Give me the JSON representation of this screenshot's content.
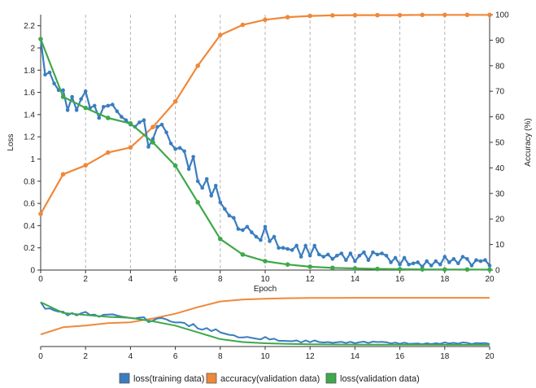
{
  "chart_data": {
    "type": "line",
    "xlabel": "Epoch",
    "ylabel": "Loss",
    "y2label": "Accuracy (%)",
    "xlim": [
      0,
      20
    ],
    "ylim": [
      0,
      2.3
    ],
    "y2lim": [
      0,
      100
    ],
    "x_ticks": [
      0,
      2,
      4,
      6,
      8,
      10,
      12,
      14,
      16,
      18,
      20
    ],
    "x_tick_labels": [
      "0",
      "2",
      "4",
      "6",
      "8",
      "10",
      "12",
      "14",
      "16",
      "18",
      "20"
    ],
    "y_ticks": [
      0,
      0.2,
      0.4,
      0.6,
      0.8,
      1,
      1.2,
      1.4,
      1.6,
      1.8,
      2,
      2.2
    ],
    "y_tick_labels": [
      "0",
      "0.2",
      "0.4",
      "0.6",
      "0.8",
      "1",
      "1.2",
      "1.4",
      "1.6",
      "1.8",
      "2",
      "2.2"
    ],
    "y2_ticks": [
      0,
      10,
      20,
      30,
      40,
      50,
      60,
      70,
      80,
      90,
      100
    ],
    "y2_tick_labels": [
      "0",
      "10",
      "20",
      "30",
      "40",
      "50",
      "60",
      "70",
      "80",
      "90",
      "100"
    ],
    "grid": "vertical dashed at even epochs",
    "legend_position": "bottom",
    "colors": {
      "loss_training": "#3a7dbf",
      "accuracy_validation": "#f0883a",
      "loss_validation": "#3ea84a"
    },
    "series": [
      {
        "name": "loss(training data)",
        "axis": "left",
        "x": [
          0,
          0.2,
          0.4,
          0.6,
          0.8,
          1.0,
          1.2,
          1.4,
          1.6,
          1.8,
          2.0,
          2.2,
          2.4,
          2.6,
          2.8,
          3.0,
          3.2,
          3.4,
          3.6,
          3.8,
          4.0,
          4.2,
          4.4,
          4.6,
          4.8,
          5.0,
          5.2,
          5.4,
          5.6,
          5.8,
          6.0,
          6.2,
          6.4,
          6.6,
          6.8,
          7.0,
          7.2,
          7.4,
          7.6,
          7.8,
          8.0,
          8.2,
          8.4,
          8.6,
          8.8,
          9.0,
          9.2,
          9.4,
          9.6,
          9.8,
          10.0,
          10.2,
          10.4,
          10.6,
          10.8,
          11.0,
          11.2,
          11.4,
          11.6,
          11.8,
          12.0,
          12.2,
          12.4,
          12.6,
          12.8,
          13.0,
          13.2,
          13.4,
          13.6,
          13.8,
          14.0,
          14.2,
          14.4,
          14.6,
          14.8,
          15.0,
          15.2,
          15.4,
          15.6,
          15.8,
          16.0,
          16.2,
          16.4,
          16.6,
          16.8,
          17.0,
          17.2,
          17.4,
          17.6,
          17.8,
          18.0,
          18.2,
          18.4,
          18.6,
          18.8,
          19.0,
          19.2,
          19.4,
          19.6,
          19.8,
          20.0
        ],
        "values": [
          2.08,
          1.76,
          1.78,
          1.68,
          1.62,
          1.62,
          1.44,
          1.56,
          1.44,
          1.54,
          1.61,
          1.46,
          1.48,
          1.37,
          1.47,
          1.48,
          1.49,
          1.43,
          1.38,
          1.35,
          1.31,
          1.29,
          1.33,
          1.35,
          1.11,
          1.18,
          1.29,
          1.31,
          1.24,
          1.14,
          1.09,
          1.1,
          1.07,
          0.91,
          1.02,
          0.8,
          0.74,
          0.82,
          0.67,
          0.76,
          0.61,
          0.55,
          0.49,
          0.47,
          0.37,
          0.36,
          0.39,
          0.34,
          0.3,
          0.27,
          0.39,
          0.26,
          0.3,
          0.2,
          0.2,
          0.19,
          0.18,
          0.22,
          0.12,
          0.22,
          0.13,
          0.22,
          0.14,
          0.12,
          0.14,
          0.1,
          0.13,
          0.15,
          0.09,
          0.15,
          0.08,
          0.13,
          0.16,
          0.09,
          0.16,
          0.14,
          0.15,
          0.13,
          0.07,
          0.11,
          0.05,
          0.11,
          0.05,
          0.06,
          0.07,
          0.03,
          0.08,
          0.04,
          0.08,
          0.05,
          0.12,
          0.07,
          0.1,
          0.06,
          0.12,
          0.1,
          0.04,
          0.09,
          0.08,
          0.09,
          0.04
        ]
      },
      {
        "name": "accuracy(validation data)",
        "axis": "right",
        "x": [
          0,
          1,
          2,
          3,
          4,
          5,
          6,
          7,
          8,
          9,
          10,
          11,
          12,
          13,
          14,
          15,
          16,
          17,
          18,
          19,
          20
        ],
        "values": [
          22,
          37.5,
          41,
          46,
          48,
          56,
          66,
          80,
          92,
          96,
          98,
          99,
          99.5,
          99.7,
          99.8,
          99.8,
          99.8,
          99.9,
          99.9,
          99.9,
          99.9
        ]
      },
      {
        "name": "loss(validation data)",
        "axis": "left",
        "x": [
          0,
          1,
          2,
          3,
          4,
          5,
          6,
          7,
          8,
          9,
          10,
          11,
          12,
          13,
          14,
          15,
          16,
          17,
          18,
          19,
          20
        ],
        "values": [
          2.08,
          1.56,
          1.46,
          1.37,
          1.32,
          1.15,
          0.94,
          0.61,
          0.28,
          0.14,
          0.08,
          0.05,
          0.03,
          0.02,
          0.015,
          0.01,
          0.008,
          0.006,
          0.005,
          0.005,
          0.004
        ]
      }
    ]
  }
}
